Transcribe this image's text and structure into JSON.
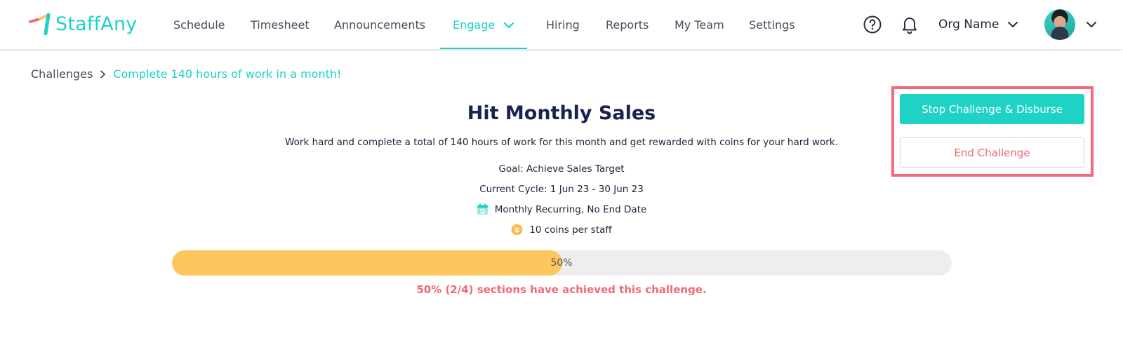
{
  "brand": {
    "name": "StaffAny",
    "accent": "#1ed3c6",
    "logo_icon": "staffany-logo-icon"
  },
  "nav": {
    "items": [
      {
        "label": "Schedule"
      },
      {
        "label": "Timesheet"
      },
      {
        "label": "Announcements"
      },
      {
        "label": "Engage",
        "active": true,
        "has_dropdown": true
      },
      {
        "label": "Hiring"
      },
      {
        "label": "Reports"
      },
      {
        "label": "My Team"
      },
      {
        "label": "Settings"
      }
    ],
    "help_icon": "help-circle-icon",
    "notification_icon": "bell-icon",
    "org_name": "Org Name",
    "avatar_icon": "user-avatar"
  },
  "breadcrumb": {
    "root": "Challenges",
    "current": "Complete 140 hours of work in a month!"
  },
  "challenge": {
    "title": "Hit Monthly Sales",
    "description": "Work hard and complete a total of 140 hours of work for this month and get rewarded with coins for your hard work.",
    "goal": "Goal: Achieve Sales Target",
    "cycle": "Current Cycle: 1 Jun 23 - 30 Jun 23",
    "recurrence": "Monthly Recurring, No End Date",
    "reward": "10 coins per staff",
    "progress_percent": 50,
    "progress_label": "50%",
    "achieved_text": "50% (2/4) sections have achieved this challenge.",
    "progress_color": "#fec65f",
    "achieved_color": "#f06a73"
  },
  "actions": {
    "stop_label": "Stop Challenge & Disburse",
    "end_label": "End Challenge",
    "highlight_color": "#f26b77"
  }
}
